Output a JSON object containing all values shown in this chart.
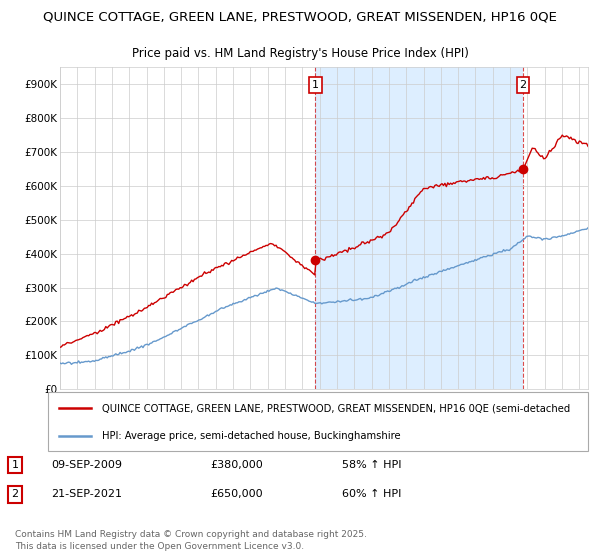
{
  "title": "QUINCE COTTAGE, GREEN LANE, PRESTWOOD, GREAT MISSENDEN, HP16 0QE",
  "subtitle": "Price paid vs. HM Land Registry's House Price Index (HPI)",
  "title_fontsize": 9.5,
  "subtitle_fontsize": 8.5,
  "ylim": [
    0,
    950000
  ],
  "yticks": [
    0,
    100000,
    200000,
    300000,
    400000,
    500000,
    600000,
    700000,
    800000,
    900000
  ],
  "ytick_labels": [
    "£0",
    "£100K",
    "£200K",
    "£300K",
    "£400K",
    "£500K",
    "£600K",
    "£700K",
    "£800K",
    "£900K"
  ],
  "red_color": "#cc0000",
  "blue_color": "#6699cc",
  "shade_color": "#ddeeff",
  "background_color": "#ffffff",
  "grid_color": "#cccccc",
  "sale1_t": 2009.75,
  "sale1_price": 380000,
  "sale2_t": 2021.75,
  "sale2_price": 650000,
  "sale1": {
    "date": "09-SEP-2009",
    "price": "£380,000",
    "hpi_change": "58% ↑ HPI"
  },
  "sale2": {
    "date": "21-SEP-2021",
    "price": "£650,000",
    "hpi_change": "60% ↑ HPI"
  },
  "legend_property": "QUINCE COTTAGE, GREEN LANE, PRESTWOOD, GREAT MISSENDEN, HP16 0QE (semi-detached",
  "legend_hpi": "HPI: Average price, semi-detached house, Buckinghamshire",
  "footer": "Contains HM Land Registry data © Crown copyright and database right 2025.\nThis data is licensed under the Open Government Licence v3.0.",
  "xlim_start": 1995,
  "xlim_end": 2025.5
}
